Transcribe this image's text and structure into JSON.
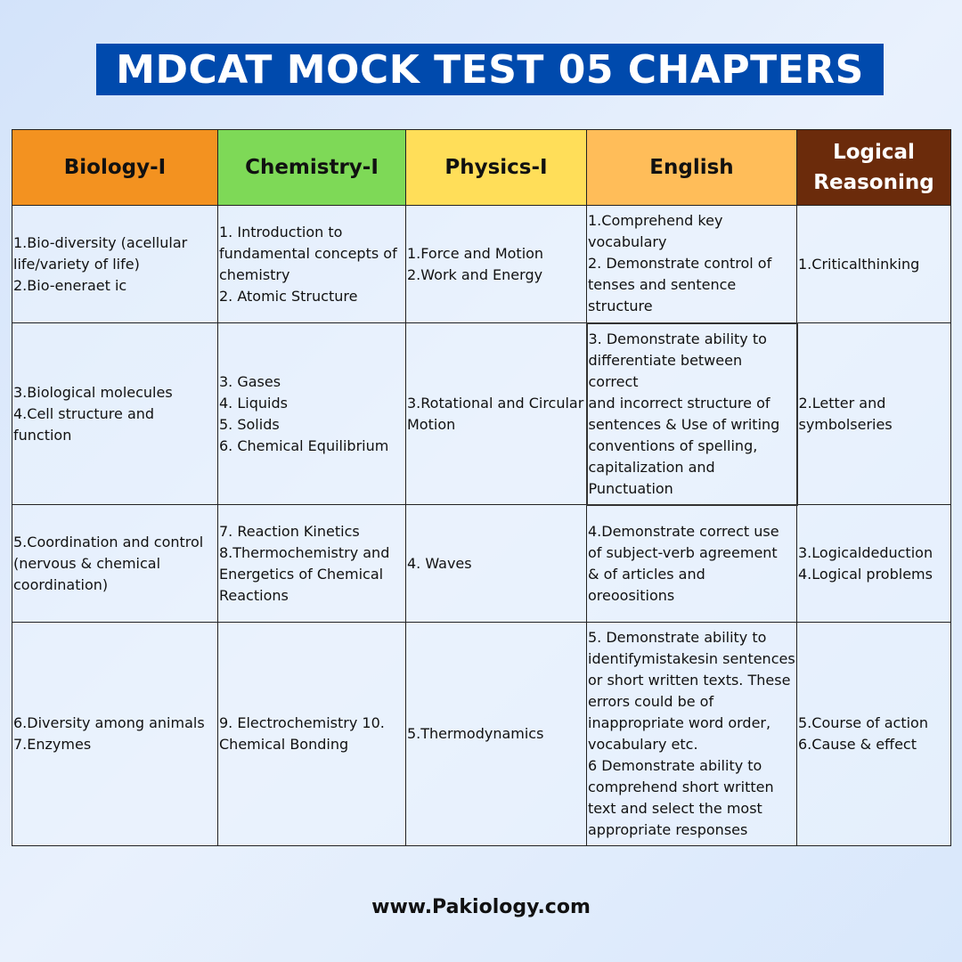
{
  "title": "MDCAT MOCK TEST 05 CHAPTERS",
  "colors": {
    "title_bg": "#004aad",
    "biology": "#f39220",
    "chemistry": "#7ed957",
    "physics": "#ffde59",
    "english": "#ffbd59",
    "logical": "#6b2b0b"
  },
  "headers": [
    "Biology-I",
    "Chemistry-I",
    "Physics-I",
    "English",
    "Logical Reasoning"
  ],
  "rows": [
    [
      "1.Bio-diversity (acellular life/variety of life)\n2.Bio-eneraet ic",
      "1. Introduction to fundamental concepts of chemistry\n2. Atomic Structure",
      "1.Force and Motion\n2.Work and Energy",
      "1.Comprehend key vocabulary\n2. Demonstrate control of tenses and sentence structure",
      "1.Criticalthinking"
    ],
    [
      "3.Biological molecules\n4.Cell structure and function",
      "3. Gases\n4. Liquids\n5. Solids\n6. Chemical Equilibrium",
      "3.Rotational and Circular Motion",
      "3. Demonstrate ability to differentiate between correct\nand incorrect structure of sentences & Use of writing conventions of spelling, capitalization and Punctuation",
      "2.Letter and symbolseries"
    ],
    [
      "5.Coordination and control (nervous & chemical coordination)",
      "7. Reaction Kinetics\n8.Thermochemistry and Energetics of Chemical Reactions",
      "4. Waves",
      "4.Demonstrate correct use of subject-verb agreement\n& of articles and oreoositions",
      "3.Logicaldeduction\n4.Logical problems"
    ],
    [
      "6.Diversity among animals 7.Enzymes",
      "9. Electrochemistry 10. Chemical Bonding",
      "5.Thermodynamics",
      "5. Demonstrate ability to identifymistakesin sentences or short written texts. These errors could be of inappropriate word order, vocabulary etc.\n6 Demonstrate ability to comprehend short written text and select the most appropriate responses",
      "5.Course of action\n6.Cause & effect"
    ]
  ],
  "footer": "www.Pakiology.com"
}
